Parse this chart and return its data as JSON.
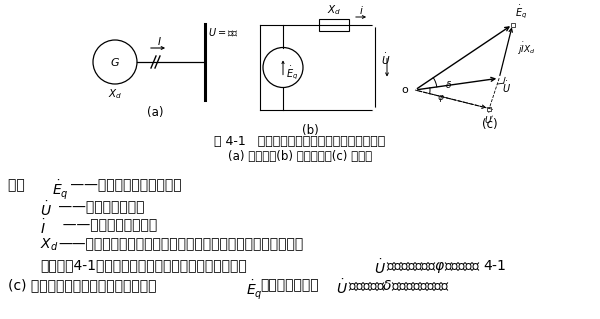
{
  "bg_color": "#ffffff",
  "fig_caption_main": "图 4-1   发电机与无限大容量系统母线并联运行",
  "fig_caption_sub": "(a) 接线图；(b) 等值电路；(c) 相量图",
  "line1": "式中    ——发电机的感应电动势；",
  "line2": "  ——发电机端电压；",
  "line3": "  ——发电机输出电流；",
  "line4": "Xd——发电机的同步电抗（电枢反应电抗与定子端漏电抗之和）。",
  "line5": "    根据式（4-1），设发电机向系统输出电流滞后端电压 ，功率因数角为φ，可作出图 4-1",
  "line6": "(c) 所示的相量图。图中发电机电动势 与机端母线电压 之间的夹角δ称为发电机的功率"
}
